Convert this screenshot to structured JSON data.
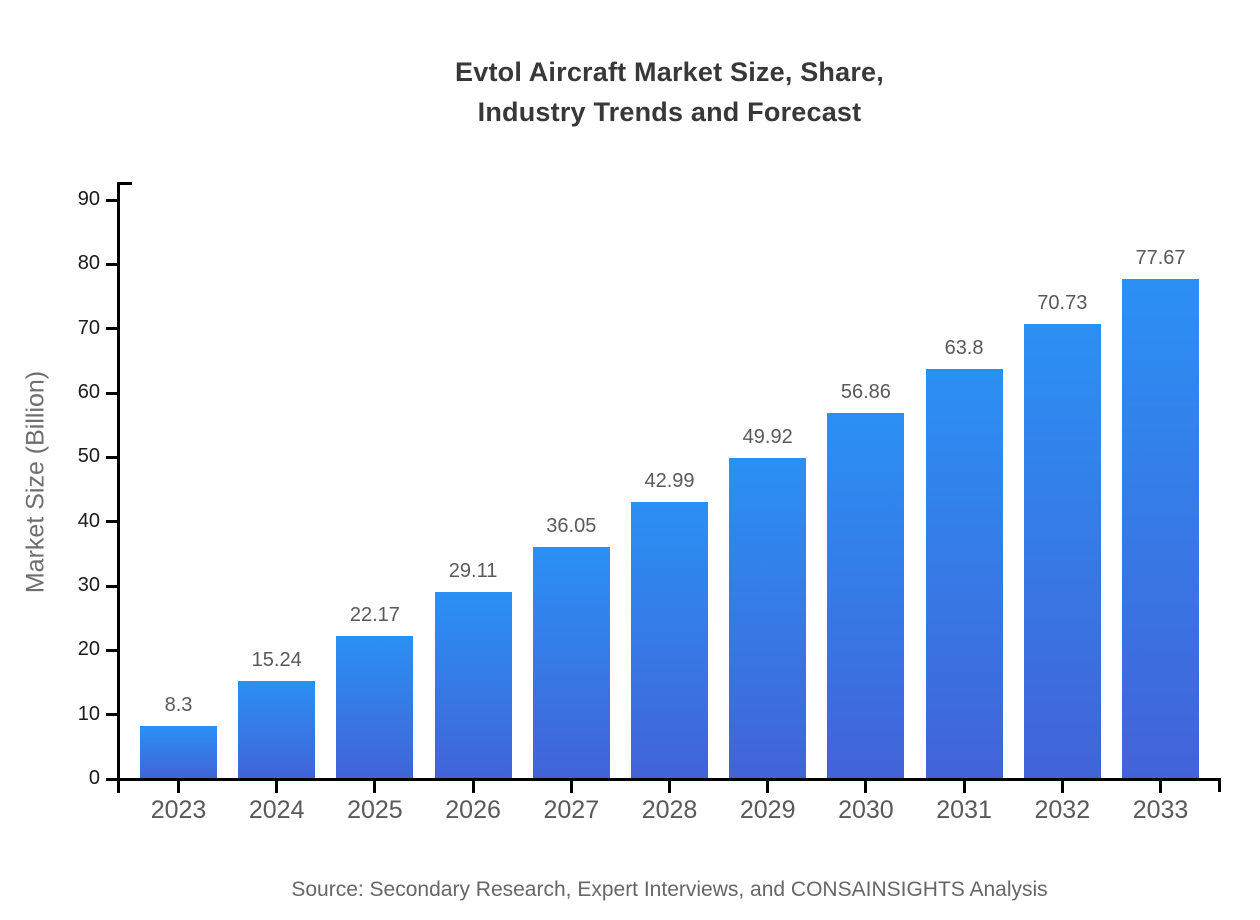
{
  "chart_data": {
    "type": "bar",
    "title": "Evtol Aircraft Market Size, Share, Industry Trends and Forecast",
    "title_lines": [
      "Evtol Aircraft Market Size, Share,",
      "Industry Trends and Forecast"
    ],
    "categories": [
      "2023",
      "2024",
      "2025",
      "2026",
      "2027",
      "2028",
      "2029",
      "2030",
      "2031",
      "2032",
      "2033"
    ],
    "values": [
      8.3,
      15.24,
      22.17,
      29.11,
      36.05,
      42.99,
      49.92,
      56.86,
      63.8,
      70.73,
      77.67
    ],
    "value_labels": [
      "8.3",
      "15.24",
      "22.17",
      "29.11",
      "36.05",
      "42.99",
      "49.92",
      "56.86",
      "63.8",
      "70.73",
      "77.67"
    ],
    "xlabel": "",
    "ylabel": "Market Size (Billion)",
    "ylim": [
      0,
      90
    ],
    "yticks": [
      0,
      10,
      20,
      30,
      40,
      50,
      60,
      70,
      80,
      90
    ],
    "grid": false,
    "legend": null,
    "source": "Source: Secondary Research, Expert Interviews, and CONSAINSIGHTS Analysis",
    "colors": {
      "bar_gradient_top": "#2B90F4",
      "bar_gradient_bottom": "#4263D8",
      "axis": "#000000",
      "title_text": "#383838",
      "ytick_label": "#1a1a1a",
      "xtick_label": "#595959",
      "value_label": "#595959",
      "ylabel_text": "#6e6e6e",
      "source_text": "#666666",
      "background": "#ffffff"
    }
  }
}
